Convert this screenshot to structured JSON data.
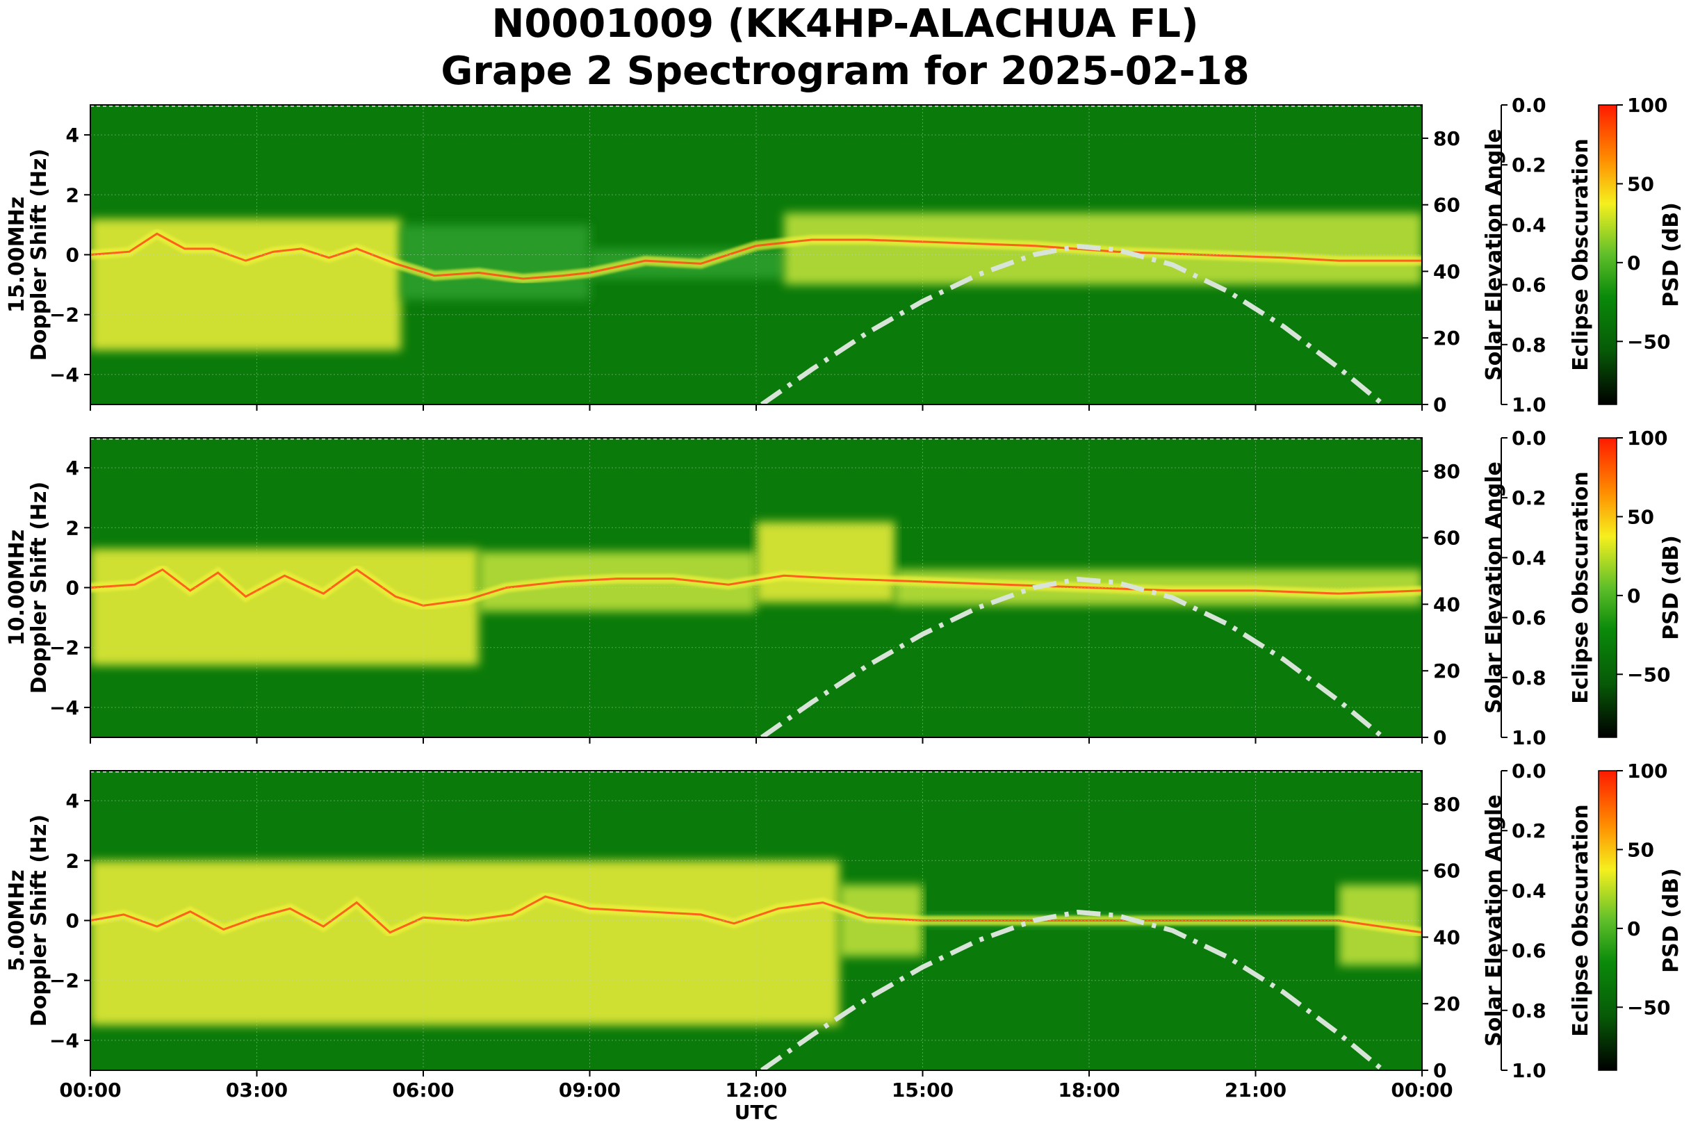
{
  "title_line1": "N0001009 (KK4HP-ALACHUA FL)",
  "title_line2": "Grape 2 Spectrogram for 2025-02-18",
  "colors": {
    "spectrogram_background": "#0a7a0a",
    "band_low": "#2fa12f",
    "band_mid": "#c8e63c",
    "band_high": "#f2f23a",
    "trace_peak": "#ff4a14",
    "solar_curve": "#d8e4d8"
  },
  "chart_data": [
    {
      "type": "heatmap",
      "title": "",
      "panel": "15.00MHz",
      "xlabel": "",
      "ylabel": "15.00MHz\nDoppler Shift (Hz)",
      "ylim": [
        -5,
        5
      ],
      "yticks": [
        "4",
        "2",
        "0",
        "−2",
        "−4"
      ],
      "ytick_values": [
        4,
        2,
        0,
        -2,
        -4
      ],
      "right_axis_label": "Solar Elevation Angle",
      "right_axis_range": [
        0,
        90
      ],
      "right_axis_ticks": [
        "80",
        "60",
        "40",
        "20",
        "0"
      ],
      "right_axis_tick_values": [
        80,
        60,
        40,
        20,
        0
      ],
      "eclipse_label": "Eclipse Obscuration",
      "eclipse_range": [
        0.0,
        1.0
      ],
      "eclipse_ticks": [
        "0.0",
        "0.2",
        "0.4",
        "0.6",
        "0.8",
        "1.0"
      ],
      "colorbar_label": "PSD (dB)",
      "colorbar_range": [
        -90,
        100
      ],
      "colorbar_ticks": [
        "100",
        "50",
        "0",
        "−50"
      ],
      "colorbar_tick_values": [
        100,
        50,
        0,
        -50
      ],
      "grid": true,
      "solar_elevation_series": {
        "name": "",
        "x_hours": [
          12.1,
          13.0,
          14.0,
          15.0,
          16.0,
          17.0,
          17.8,
          18.5,
          19.5,
          20.5,
          21.5,
          22.5,
          23.3
        ],
        "elevation_deg": [
          0,
          10.5,
          21.5,
          31,
          39,
          45,
          47.5,
          46.5,
          42,
          34,
          23.5,
          11,
          0
        ]
      },
      "doppler_trace": {
        "x_hours": [
          0,
          0.7,
          1.2,
          1.7,
          2.2,
          2.8,
          3.3,
          3.8,
          4.3,
          4.8,
          5.5,
          6.2,
          7.0,
          7.8,
          8.5,
          9.0,
          10.0,
          11.0,
          12.0,
          13.0,
          14.0,
          15.5,
          17.0,
          18.5,
          20.0,
          21.5,
          22.5,
          24.0
        ],
        "doppler_hz": [
          0,
          0.1,
          0.7,
          0.2,
          0.2,
          -0.2,
          0.1,
          0.2,
          -0.1,
          0.2,
          -0.3,
          -0.7,
          -0.6,
          -0.8,
          -0.7,
          -0.6,
          -0.2,
          -0.3,
          0.3,
          0.5,
          0.5,
          0.4,
          0.3,
          0.1,
          0,
          -0.1,
          -0.2,
          -0.2
        ]
      },
      "bright_bands": [
        {
          "x0": 0.0,
          "x1": 5.6,
          "level": "high",
          "upper_hz": 1.2,
          "lower_hz": -3.2
        },
        {
          "x0": 5.6,
          "x1": 9.0,
          "level": "low",
          "upper_hz": 1.0,
          "lower_hz": -1.5
        },
        {
          "x0": 9.0,
          "x1": 12.5,
          "level": "low",
          "upper_hz": 0.2,
          "lower_hz": -0.8
        },
        {
          "x0": 12.5,
          "x1": 24.0,
          "level": "mid",
          "upper_hz": 1.4,
          "lower_hz": -1.0
        }
      ]
    },
    {
      "type": "heatmap",
      "title": "",
      "panel": "10.00MHz",
      "xlabel": "",
      "ylabel": "10.00MHz\nDoppler Shift (Hz)",
      "ylim": [
        -5,
        5
      ],
      "yticks": [
        "4",
        "2",
        "0",
        "−2",
        "−4"
      ],
      "ytick_values": [
        4,
        2,
        0,
        -2,
        -4
      ],
      "right_axis_label": "Solar Elevation Angle",
      "right_axis_range": [
        0,
        90
      ],
      "right_axis_ticks": [
        "80",
        "60",
        "40",
        "20",
        "0"
      ],
      "right_axis_tick_values": [
        80,
        60,
        40,
        20,
        0
      ],
      "eclipse_label": "Eclipse Obscuration",
      "eclipse_range": [
        0.0,
        1.0
      ],
      "eclipse_ticks": [
        "0.0",
        "0.2",
        "0.4",
        "0.6",
        "0.8",
        "1.0"
      ],
      "colorbar_label": "PSD (dB)",
      "colorbar_range": [
        -90,
        100
      ],
      "colorbar_ticks": [
        "100",
        "50",
        "0",
        "−50"
      ],
      "colorbar_tick_values": [
        100,
        50,
        0,
        -50
      ],
      "grid": true,
      "solar_elevation_series": {
        "name": "",
        "x_hours": [
          12.1,
          13.0,
          14.0,
          15.0,
          16.0,
          17.0,
          17.8,
          18.5,
          19.5,
          20.5,
          21.5,
          22.5,
          23.3
        ],
        "elevation_deg": [
          0,
          10.5,
          21.5,
          31,
          39,
          45,
          47.5,
          46.5,
          42,
          34,
          23.5,
          11,
          0
        ]
      },
      "doppler_trace": {
        "x_hours": [
          0,
          0.8,
          1.3,
          1.8,
          2.3,
          2.8,
          3.5,
          4.2,
          4.8,
          5.5,
          6.0,
          6.8,
          7.5,
          8.5,
          9.5,
          10.5,
          11.5,
          12.5,
          13.5,
          15.0,
          16.5,
          18.0,
          19.5,
          21.0,
          22.5,
          24.0
        ],
        "doppler_hz": [
          0,
          0.1,
          0.6,
          -0.1,
          0.5,
          -0.3,
          0.4,
          -0.2,
          0.6,
          -0.3,
          -0.6,
          -0.4,
          0,
          0.2,
          0.3,
          0.3,
          0.1,
          0.4,
          0.3,
          0.2,
          0.1,
          0,
          -0.1,
          -0.1,
          -0.2,
          -0.1
        ]
      },
      "bright_bands": [
        {
          "x0": 0.0,
          "x1": 7.0,
          "level": "high",
          "upper_hz": 1.3,
          "lower_hz": -2.6
        },
        {
          "x0": 7.0,
          "x1": 12.0,
          "level": "mid",
          "upper_hz": 1.2,
          "lower_hz": -0.8
        },
        {
          "x0": 12.0,
          "x1": 14.5,
          "level": "high",
          "upper_hz": 2.2,
          "lower_hz": -0.5
        },
        {
          "x0": 14.5,
          "x1": 24.0,
          "level": "mid",
          "upper_hz": 0.6,
          "lower_hz": -0.6
        }
      ]
    },
    {
      "type": "heatmap",
      "title": "",
      "panel": "5.00MHz",
      "xlabel": "UTC",
      "ylabel": "5.00MHz\nDoppler Shift (Hz)",
      "ylim": [
        -5,
        5
      ],
      "yticks": [
        "4",
        "2",
        "0",
        "−2",
        "−4"
      ],
      "ytick_values": [
        4,
        2,
        0,
        -2,
        -4
      ],
      "right_axis_label": "Solar Elevation Angle",
      "right_axis_range": [
        0,
        90
      ],
      "right_axis_ticks": [
        "80",
        "60",
        "40",
        "20",
        "0"
      ],
      "right_axis_tick_values": [
        80,
        60,
        40,
        20,
        0
      ],
      "eclipse_label": "Eclipse Obscuration",
      "eclipse_range": [
        0.0,
        1.0
      ],
      "eclipse_ticks": [
        "0.0",
        "0.2",
        "0.4",
        "0.6",
        "0.8",
        "1.0"
      ],
      "colorbar_label": "PSD (dB)",
      "colorbar_range": [
        -90,
        100
      ],
      "colorbar_ticks": [
        "100",
        "50",
        "0",
        "−50"
      ],
      "colorbar_tick_values": [
        100,
        50,
        0,
        -50
      ],
      "grid": true,
      "solar_elevation_series": {
        "name": "",
        "x_hours": [
          12.1,
          13.0,
          14.0,
          15.0,
          16.0,
          17.0,
          17.8,
          18.5,
          19.5,
          20.5,
          21.5,
          22.5,
          23.3
        ],
        "elevation_deg": [
          0,
          10.5,
          21.5,
          31,
          39,
          45,
          47.5,
          46.5,
          42,
          34,
          23.5,
          11,
          0
        ]
      },
      "doppler_trace": {
        "x_hours": [
          0,
          0.6,
          1.2,
          1.8,
          2.4,
          3.0,
          3.6,
          4.2,
          4.8,
          5.4,
          6.0,
          6.8,
          7.6,
          8.2,
          9.0,
          10.0,
          11.0,
          11.6,
          12.4,
          13.2,
          14.0,
          15.0,
          16.5,
          18.0,
          19.5,
          21.0,
          22.5,
          24.0
        ],
        "doppler_hz": [
          0,
          0.2,
          -0.2,
          0.3,
          -0.3,
          0.1,
          0.4,
          -0.2,
          0.6,
          -0.4,
          0.1,
          0,
          0.2,
          0.8,
          0.4,
          0.3,
          0.2,
          -0.1,
          0.4,
          0.6,
          0.1,
          0,
          0,
          0,
          0,
          0,
          0,
          -0.4
        ]
      },
      "bright_bands": [
        {
          "x0": 0.0,
          "x1": 13.5,
          "level": "high",
          "upper_hz": 2.0,
          "lower_hz": -3.5
        },
        {
          "x0": 13.5,
          "x1": 15.0,
          "level": "mid",
          "upper_hz": 1.2,
          "lower_hz": -1.2
        },
        {
          "x0": 15.0,
          "x1": 22.5,
          "level": "low",
          "upper_hz": 0.2,
          "lower_hz": -0.2
        },
        {
          "x0": 22.5,
          "x1": 24.0,
          "level": "mid",
          "upper_hz": 1.2,
          "lower_hz": -1.5
        }
      ]
    }
  ],
  "x_axis": {
    "label": "UTC",
    "range_hours": [
      0,
      24
    ],
    "ticks": [
      "00:00",
      "03:00",
      "06:00",
      "09:00",
      "12:00",
      "15:00",
      "18:00",
      "21:00",
      "00:00"
    ],
    "tick_hours": [
      0,
      3,
      6,
      9,
      12,
      15,
      18,
      21,
      24
    ]
  }
}
